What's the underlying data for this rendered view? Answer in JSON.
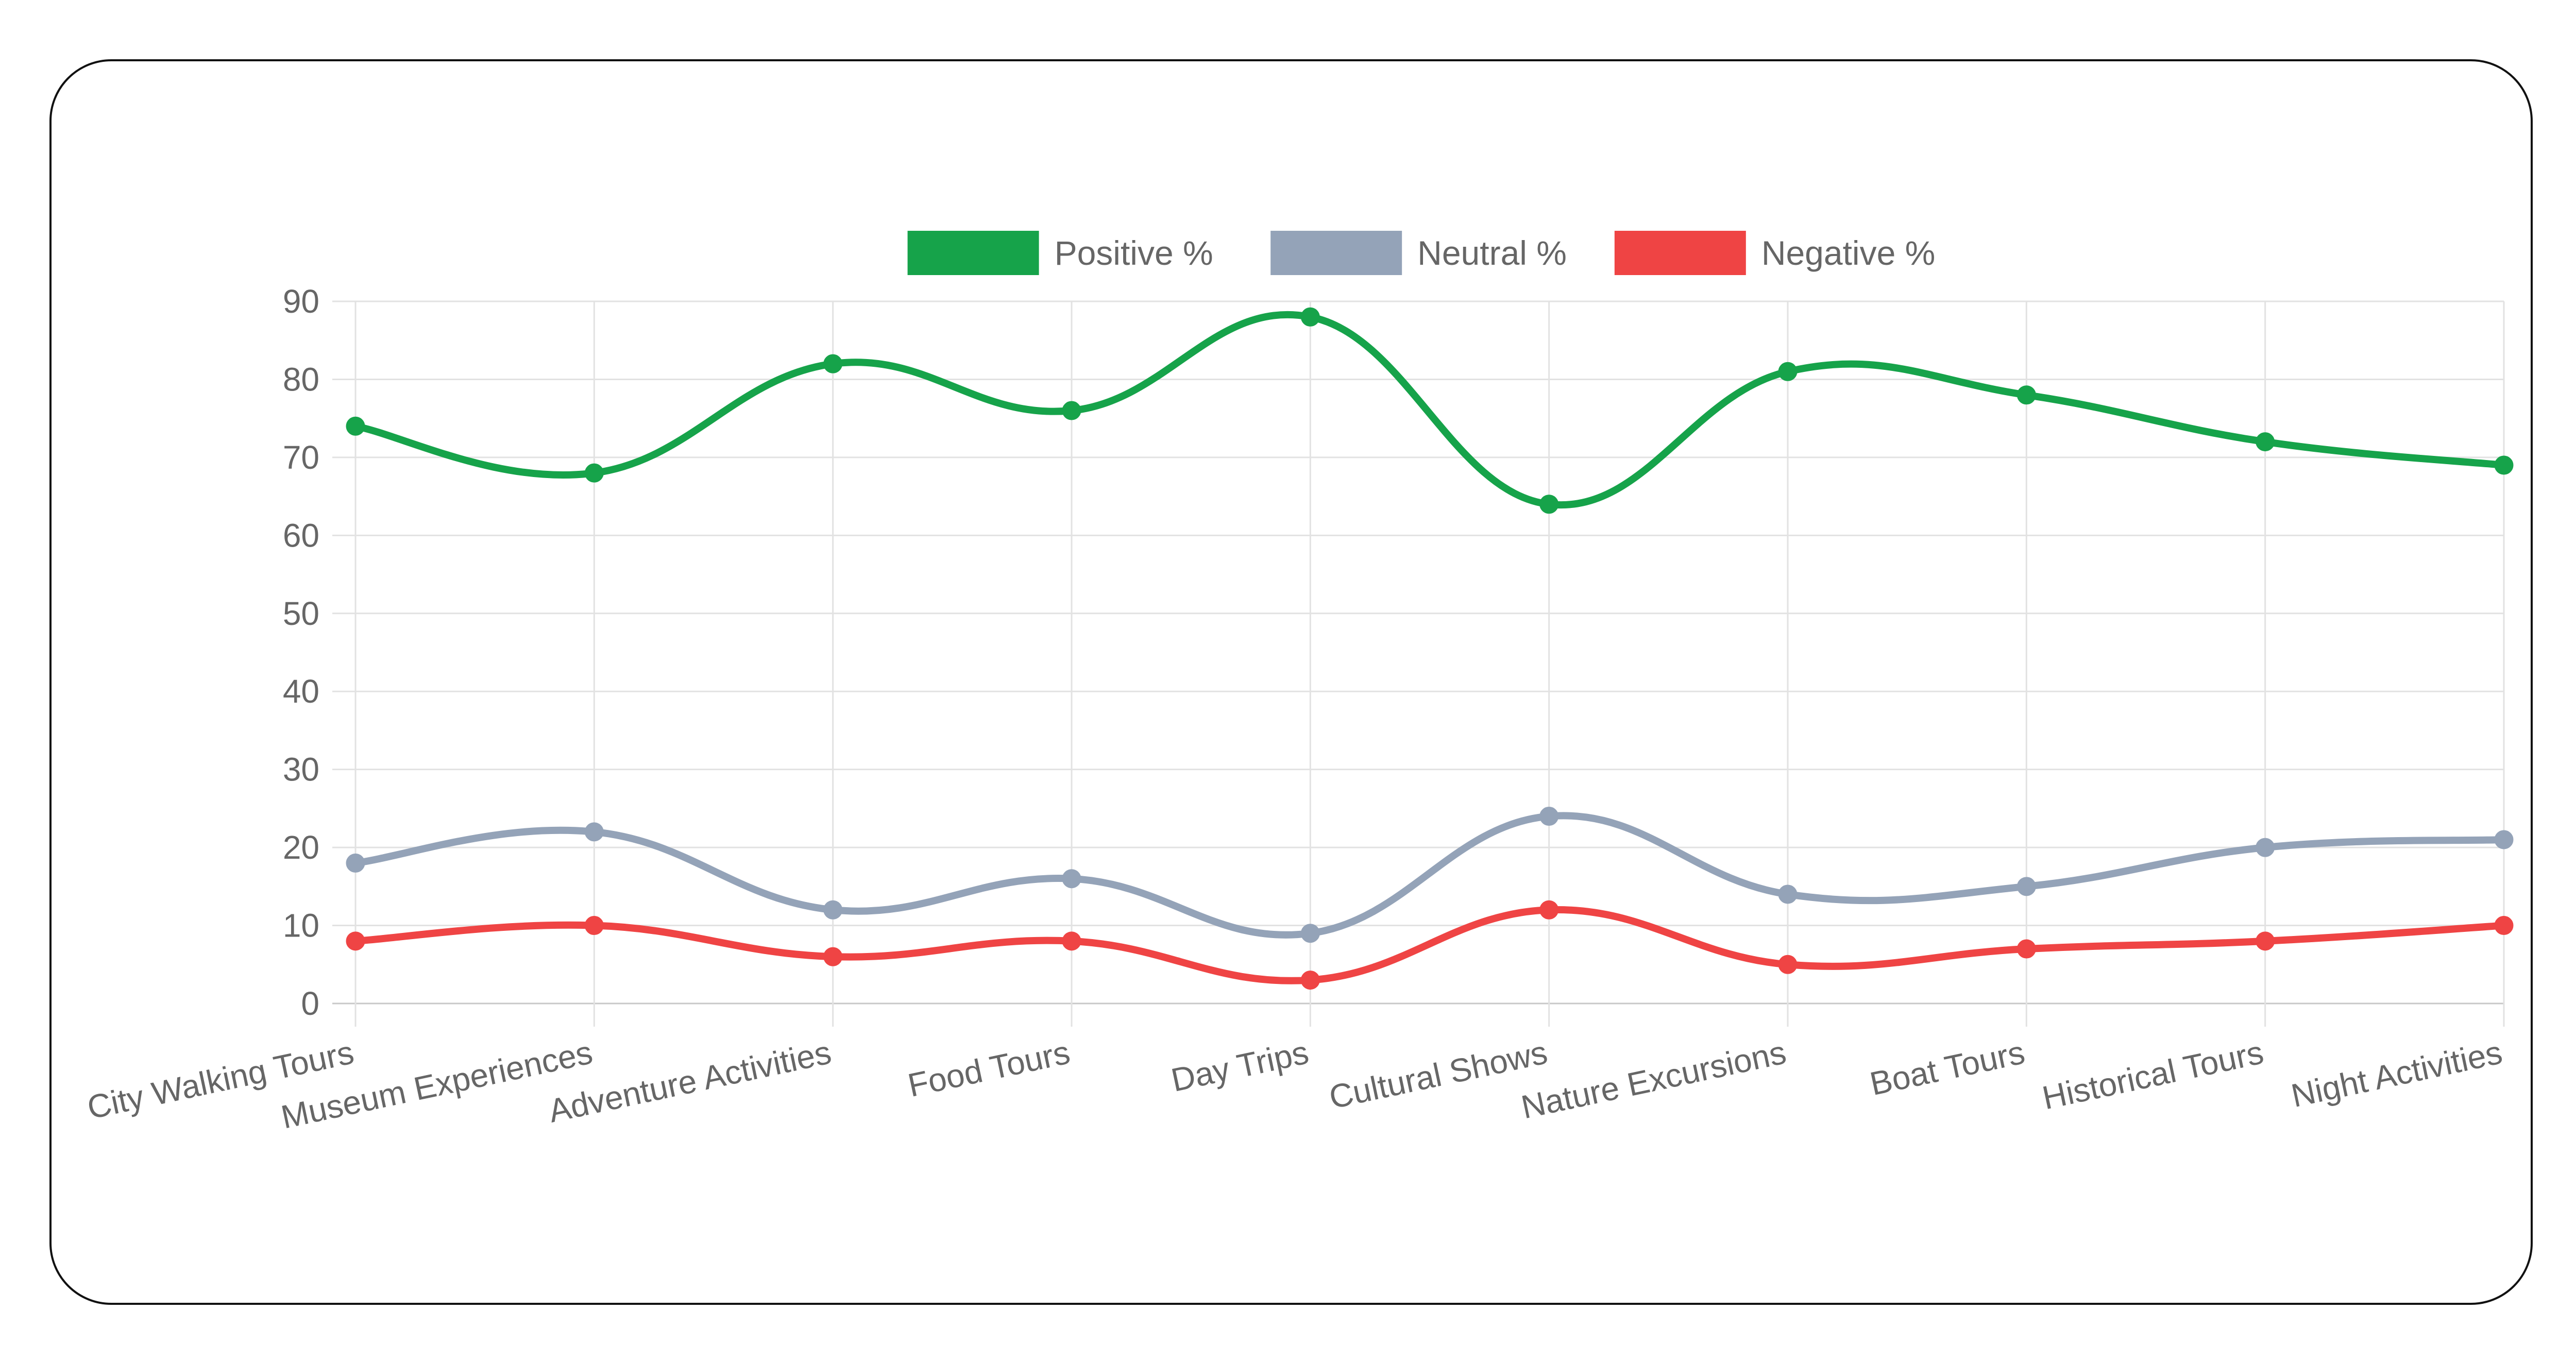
{
  "chart_data": {
    "type": "line",
    "title": "",
    "xlabel": "",
    "ylabel": "",
    "categories": [
      "City Walking Tours",
      "Museum Experiences",
      "Adventure Activities",
      "Food Tours",
      "Day Trips",
      "Cultural Shows",
      "Nature Excursions",
      "Boat Tours",
      "Historical Tours",
      "Night Activities"
    ],
    "ylim": [
      0,
      90
    ],
    "yticks": [
      0,
      10,
      20,
      30,
      40,
      50,
      60,
      70,
      80,
      90
    ],
    "grid": true,
    "legend_position": "top-center",
    "curve": "smooth",
    "series": [
      {
        "name": "Positive %",
        "color": "#16a34a",
        "values": [
          74,
          68,
          82,
          76,
          88,
          64,
          81,
          78,
          72,
          69
        ]
      },
      {
        "name": "Neutral %",
        "color": "#94a3b8",
        "values": [
          18,
          22,
          12,
          16,
          9,
          24,
          14,
          15,
          20,
          21
        ]
      },
      {
        "name": "Negative %",
        "color": "#ef4444",
        "values": [
          8,
          10,
          6,
          8,
          3,
          12,
          5,
          7,
          8,
          10
        ]
      }
    ]
  }
}
